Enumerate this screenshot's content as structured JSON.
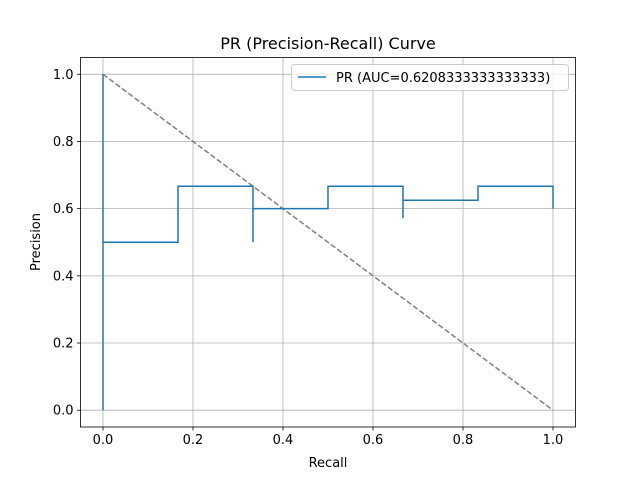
{
  "chart_data": {
    "type": "line",
    "title": "PR (Precision-Recall) Curve",
    "xlabel": "Recall",
    "ylabel": "Precision",
    "xlim": [
      -0.05,
      1.05
    ],
    "ylim": [
      -0.05,
      1.05
    ],
    "xticks": [
      "0.0",
      "0.2",
      "0.4",
      "0.6",
      "0.8",
      "1.0"
    ],
    "yticks": [
      "0.0",
      "0.2",
      "0.4",
      "0.6",
      "0.8",
      "1.0"
    ],
    "grid": true,
    "legend_position": "top-right",
    "series": [
      {
        "name": "PR (AUC=0.6208333333333333)",
        "color": "#1f77b4",
        "style": "solid",
        "x": [
          0,
          0,
          0,
          0.1667,
          0.1667,
          0.3333,
          0.3333,
          0.3333,
          0.5,
          0.5,
          0.6667,
          0.6667,
          0.6667,
          0.8333,
          0.8333,
          1.0,
          1.0
        ],
        "y": [
          0,
          1.0,
          0.5,
          0.5,
          0.6667,
          0.6667,
          0.5,
          0.6,
          0.6,
          0.6667,
          0.6667,
          0.5714,
          0.625,
          0.625,
          0.6667,
          0.6667,
          0.6
        ]
      },
      {
        "color": "#808080",
        "style": "dashed",
        "x": [
          0,
          1
        ],
        "y": [
          1,
          0
        ]
      }
    ]
  }
}
